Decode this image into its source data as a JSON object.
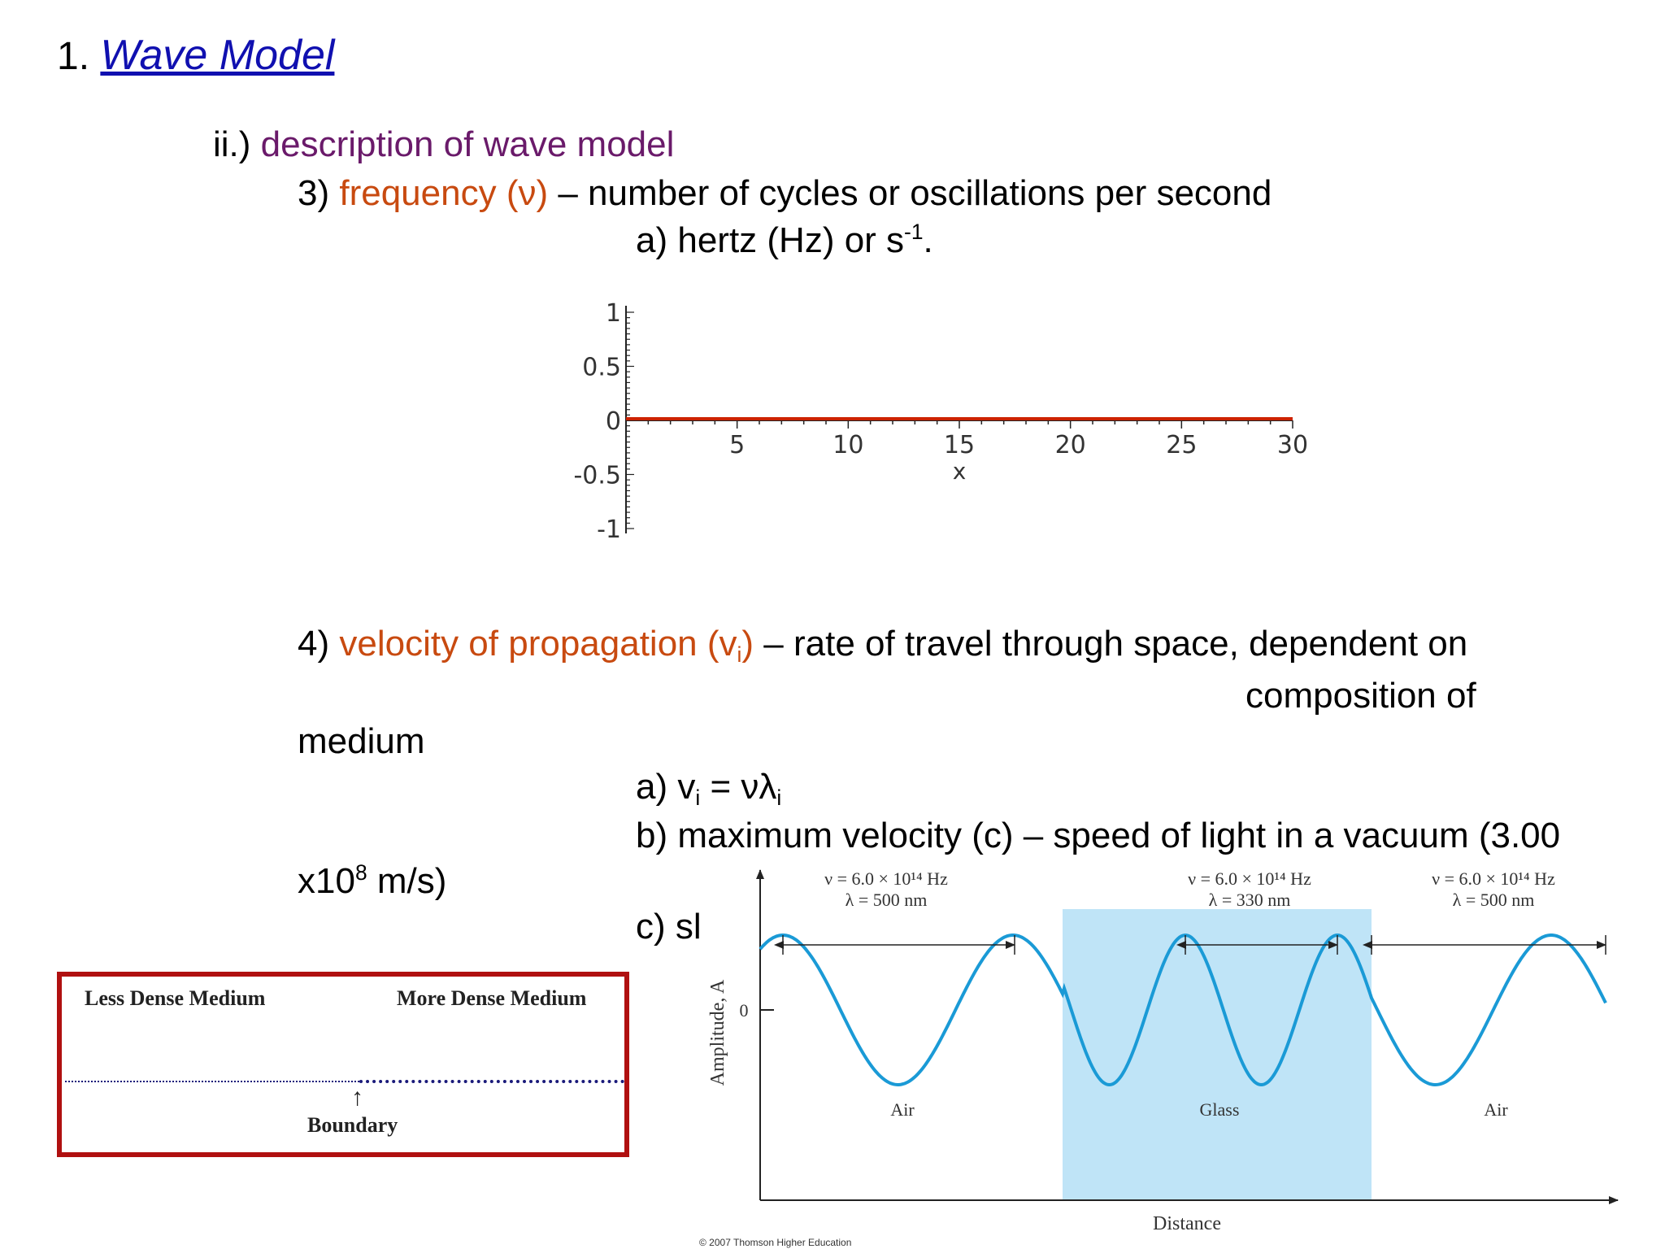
{
  "heading": {
    "number": "1.",
    "title": "Wave Model"
  },
  "section": {
    "prefix": "ii.)",
    "title": "description of wave model"
  },
  "item3": {
    "number": "3)",
    "term": "frequency (ν)",
    "definition": "– number of cycles or oscillations per second",
    "sub_a_prefix": "a) hertz (Hz) or s",
    "sub_a_sup": "-1",
    "sub_a_suffix": "."
  },
  "plot": {
    "xaxis_label": "x",
    "x_ticks": [
      "5",
      "10",
      "15",
      "20",
      "25",
      "30"
    ],
    "y_ticks": [
      "1",
      "0.5",
      "0",
      "-0.5",
      "-1"
    ],
    "line_color": "#cc2200"
  },
  "chart_data": {
    "type": "line",
    "x": [
      0,
      30
    ],
    "series": [
      {
        "values": [
          0,
          0
        ]
      }
    ],
    "xlabel": "x",
    "ylabel": "",
    "xlim": [
      0,
      30
    ],
    "ylim": [
      -1,
      1
    ]
  },
  "item4": {
    "number": "4)",
    "term_prefix": "velocity of propagation (v",
    "term_sub": "i",
    "term_suffix": ")",
    "definition": "– rate of travel through space, dependent on",
    "line2": "composition of",
    "line3": "medium",
    "sub_a": {
      "prefix": "a) v",
      "sub1": "i",
      "mid": " = νλ",
      "sub2": "i"
    },
    "sub_b": "b) maximum velocity (c) – speed of light in a vacuum (3.00",
    "sub_b2_prefix": "x10",
    "sub_b2_sup": "8",
    "sub_b2_suffix": " m/s)",
    "sub_c": "c) sl"
  },
  "boundary_figure": {
    "left_label": "Less Dense Medium",
    "right_label": "More Dense Medium",
    "boundary_label": "Boundary",
    "frame_color": "#b01010",
    "line_color": "#1a1a7a"
  },
  "wave_figure": {
    "y_axis_label": "Amplitude, A",
    "y_zero_label": "0",
    "x_axis_label": "Distance",
    "credit": "© 2007 Thomson Higher Education",
    "wave_color": "#1a9ad6",
    "glass_color": "#bfe4f7",
    "regions": [
      {
        "name": "Air",
        "nu": "ν = 6.0 × 10¹⁴ Hz",
        "lambda": "λ = 500 nm"
      },
      {
        "name": "Glass",
        "nu": "ν = 6.0 × 10¹⁴ Hz",
        "lambda": "λ = 330 nm"
      },
      {
        "name": "Air",
        "nu": "ν = 6.0 × 10¹⁴ Hz",
        "lambda": "λ = 500 nm"
      }
    ]
  }
}
